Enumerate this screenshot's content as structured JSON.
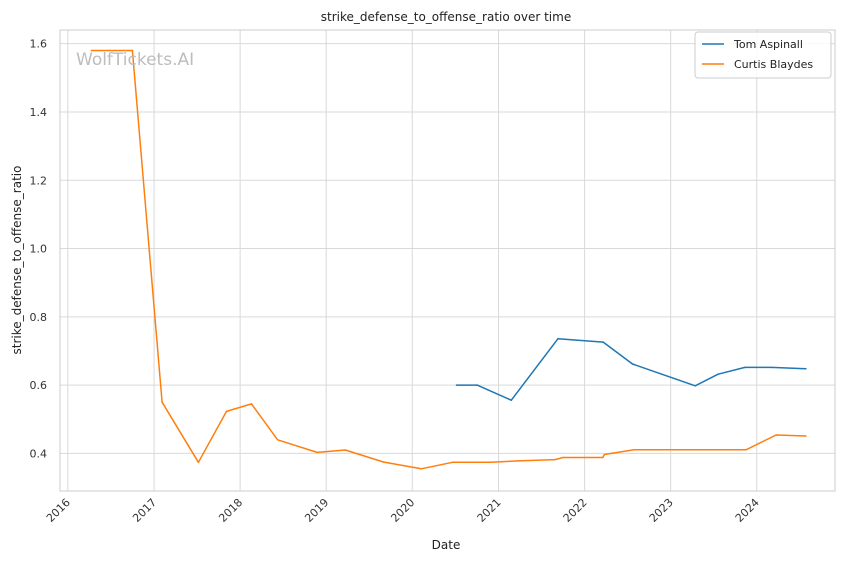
{
  "chart_data": {
    "type": "line",
    "title": "strike_defense_to_offense_ratio over time",
    "xlabel": "Date",
    "ylabel": "strike_defense_to_offense_ratio",
    "watermark": "WolfTickets.AI",
    "x_ticks": [
      "2016",
      "2017",
      "2018",
      "2019",
      "2020",
      "2021",
      "2022",
      "2023",
      "2024"
    ],
    "y_ticks": [
      "0.4",
      "0.6",
      "0.8",
      "1.0",
      "1.2",
      "1.4",
      "1.6"
    ],
    "xlim": [
      "2015-11-29",
      "2024-11-28"
    ],
    "ylim": [
      0.29,
      1.64
    ],
    "grid": true,
    "legend_position": "top-right",
    "series": [
      {
        "name": "Tom Aspinall",
        "color": "#1f77b4",
        "points": [
          [
            "2020-07-07",
            0.6
          ],
          [
            "2020-10-02",
            0.6
          ],
          [
            "2021-02-24",
            0.556
          ],
          [
            "2021-09-10",
            0.736
          ],
          [
            "2022-03-21",
            0.726
          ],
          [
            "2022-07-23",
            0.662
          ],
          [
            "2023-04-15",
            0.598
          ],
          [
            "2023-07-21",
            0.632
          ],
          [
            "2023-11-12",
            0.652
          ],
          [
            "2024-03-04",
            0.652
          ],
          [
            "2024-07-27",
            0.648
          ]
        ]
      },
      {
        "name": "Curtis Blaydes",
        "color": "#ff7f0e",
        "points": [
          [
            "2016-04-10",
            1.58
          ],
          [
            "2016-09-30",
            1.58
          ],
          [
            "2016-10-01",
            1.58
          ],
          [
            "2017-02-04",
            0.55
          ],
          [
            "2017-07-08",
            0.374
          ],
          [
            "2017-11-04",
            0.523
          ],
          [
            "2018-02-18",
            0.545
          ],
          [
            "2018-06-09",
            0.44
          ],
          [
            "2018-11-24",
            0.403
          ],
          [
            "2019-03-23",
            0.41
          ],
          [
            "2019-08-31",
            0.375
          ],
          [
            "2020-02-08",
            0.355
          ],
          [
            "2020-06-20",
            0.374
          ],
          [
            "2020-11-28",
            0.374
          ],
          [
            "2021-03-27",
            0.378
          ],
          [
            "2021-08-28",
            0.382
          ],
          [
            "2021-10-02",
            0.388
          ],
          [
            "2022-03-19",
            0.388
          ],
          [
            "2022-03-26",
            0.397
          ],
          [
            "2022-07-30",
            0.411
          ],
          [
            "2023-02-04",
            0.411
          ],
          [
            "2023-11-18",
            0.411
          ],
          [
            "2024-03-23",
            0.454
          ],
          [
            "2024-07-27",
            0.451
          ]
        ]
      }
    ]
  }
}
